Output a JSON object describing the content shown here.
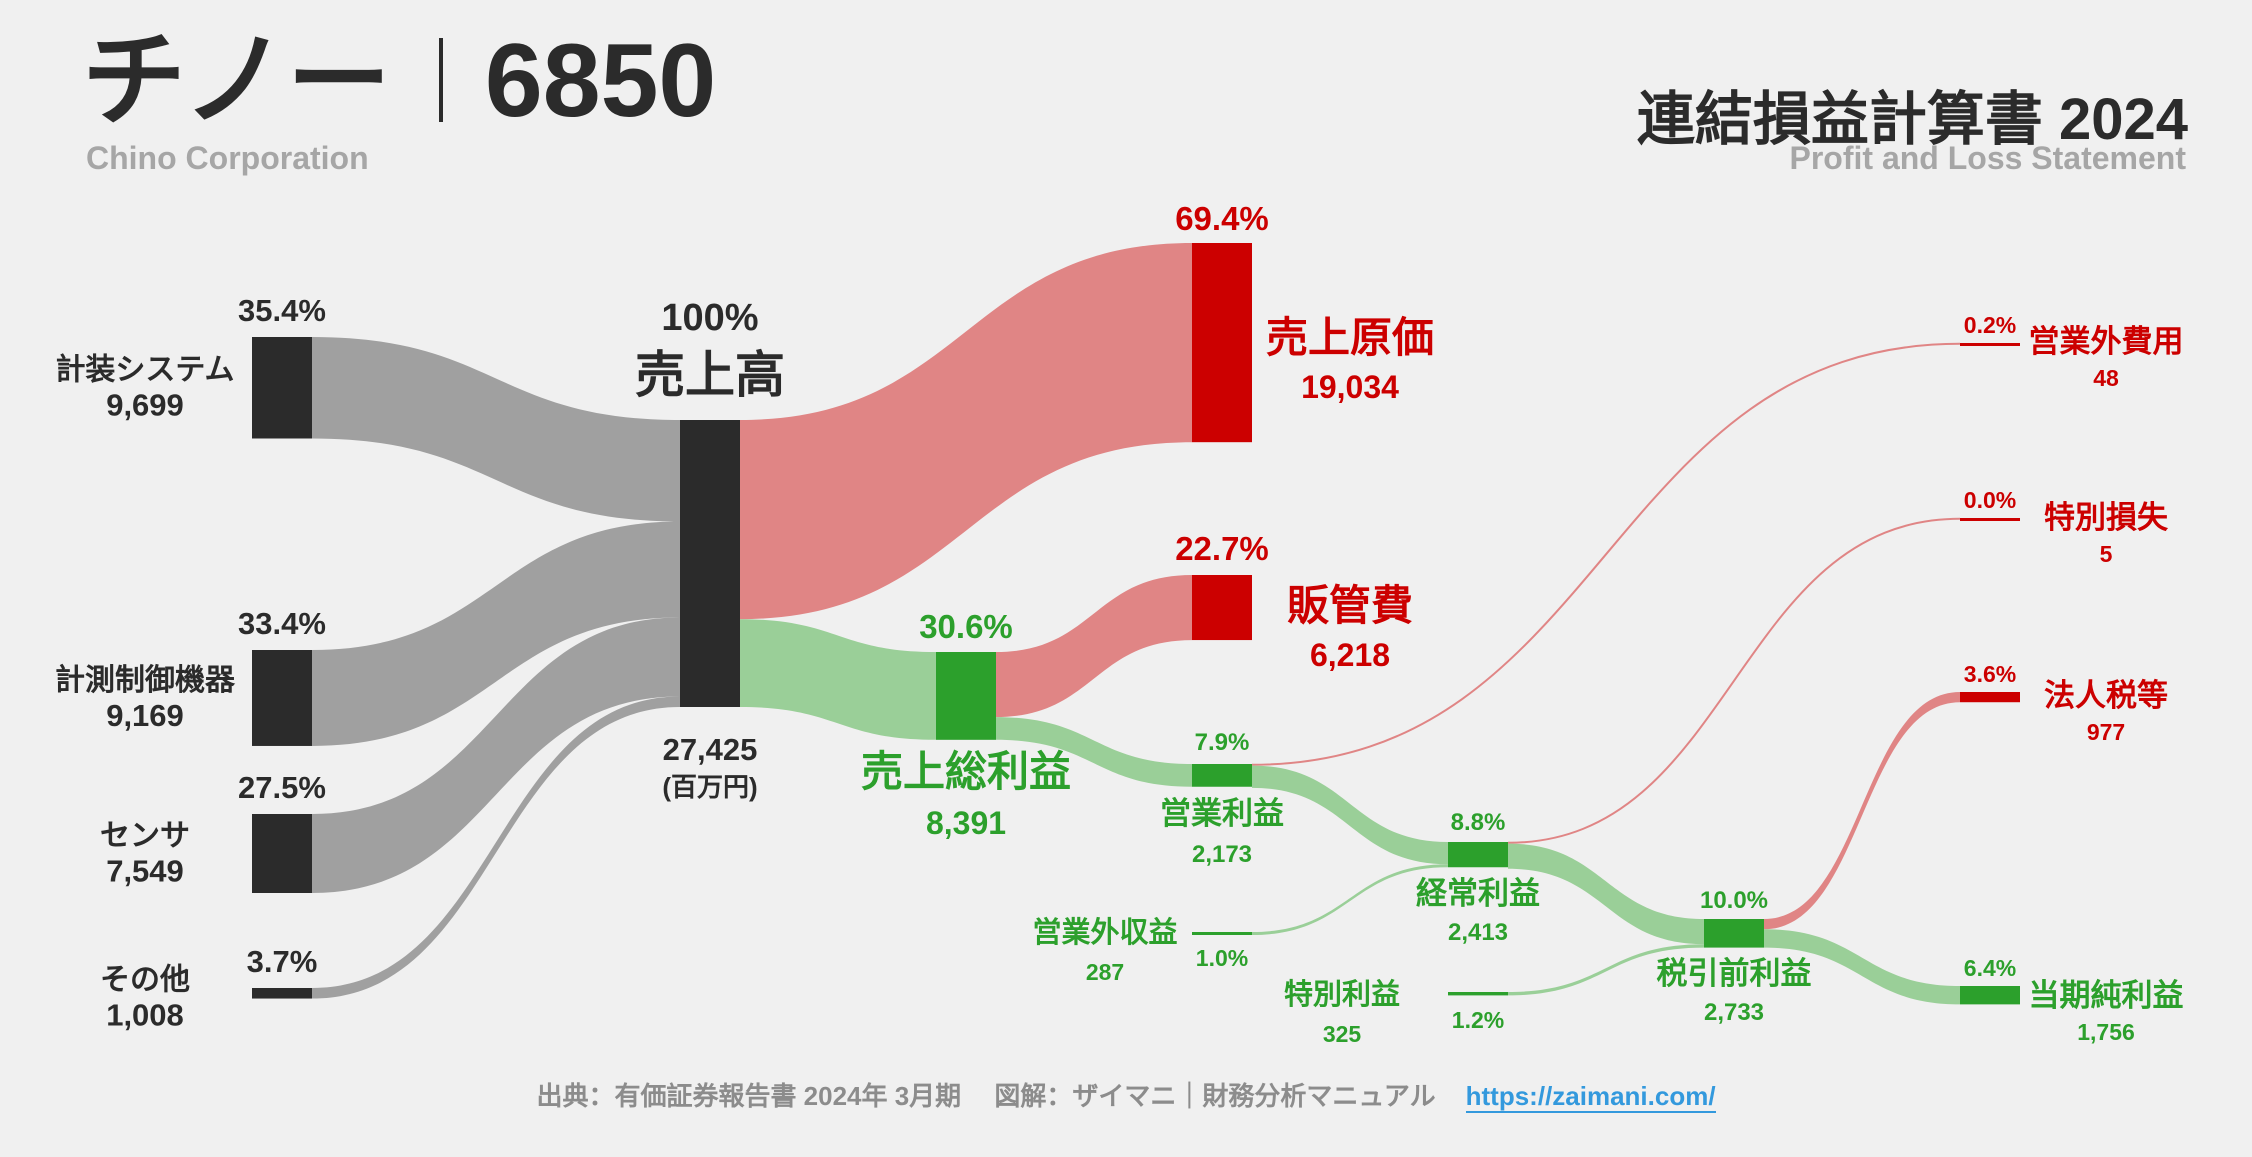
{
  "header": {
    "company_name": "チノー",
    "ticker": "6850",
    "company_name_en": "Chino Corporation",
    "statement_title": "連結損益計算書 2024",
    "statement_subtitle": "Profit and Loss Statement"
  },
  "footer": {
    "source": "出典：有価証券報告書 2024年 3月期　 図解：ザイマニ｜財務分析マニュアル",
    "url": "https://zaimani.com/"
  },
  "colors": {
    "background": "#f0f0f0",
    "revenue_node": "#2b2b2b",
    "revenue_flow": "#a0a0a0",
    "cost_node": "#cc0000",
    "cost_flow": "#e08585",
    "cost_text": "#cc0000",
    "profit_node": "#2ca02c",
    "profit_flow": "#9acf98",
    "profit_text": "#2ca02c",
    "dark_text": "#2b2b2b"
  },
  "chart_data": {
    "type": "sankey",
    "title": "連結損益計算書 2024",
    "unit": "百万円",
    "nodes": [
      {
        "id": "seg1",
        "label": "計装システム",
        "value": 9699,
        "value_text": "9,699",
        "pct": "35.4%",
        "kind": "revenue"
      },
      {
        "id": "seg2",
        "label": "計測制御機器",
        "value": 9169,
        "value_text": "9,169",
        "pct": "33.4%",
        "kind": "revenue"
      },
      {
        "id": "seg3",
        "label": "センサ",
        "value": 7549,
        "value_text": "7,549",
        "pct": "27.5%",
        "kind": "revenue"
      },
      {
        "id": "seg4",
        "label": "その他",
        "value": 1008,
        "value_text": "1,008",
        "pct": "3.7%",
        "kind": "revenue"
      },
      {
        "id": "rev",
        "label": "売上高",
        "value": 27425,
        "value_text": "27,425",
        "pct": "100%",
        "unit_label": "(百万円)",
        "kind": "revenue"
      },
      {
        "id": "cogs",
        "label": "売上原価",
        "value": 19034,
        "value_text": "19,034",
        "pct": "69.4%",
        "kind": "cost"
      },
      {
        "id": "gross",
        "label": "売上総利益",
        "value": 8391,
        "value_text": "8,391",
        "pct": "30.6%",
        "kind": "profit"
      },
      {
        "id": "sga",
        "label": "販管費",
        "value": 6218,
        "value_text": "6,218",
        "pct": "22.7%",
        "kind": "cost"
      },
      {
        "id": "op",
        "label": "営業利益",
        "value": 2173,
        "value_text": "2,173",
        "pct": "7.9%",
        "kind": "profit"
      },
      {
        "id": "nonopinc",
        "label": "営業外収益",
        "value": 287,
        "value_text": "287",
        "pct": "1.0%",
        "kind": "profit"
      },
      {
        "id": "nonopexp",
        "label": "営業外費用",
        "value": 48,
        "value_text": "48",
        "pct": "0.2%",
        "kind": "cost"
      },
      {
        "id": "ord",
        "label": "経常利益",
        "value": 2413,
        "value_text": "2,413",
        "pct": "8.8%",
        "kind": "profit"
      },
      {
        "id": "extinc",
        "label": "特別利益",
        "value": 325,
        "value_text": "325",
        "pct": "1.2%",
        "kind": "profit"
      },
      {
        "id": "extloss",
        "label": "特別損失",
        "value": 5,
        "value_text": "5",
        "pct": "0.0%",
        "kind": "cost"
      },
      {
        "id": "pretax",
        "label": "税引前利益",
        "value": 2733,
        "value_text": "2,733",
        "pct": "10.0%",
        "kind": "profit"
      },
      {
        "id": "tax",
        "label": "法人税等",
        "value": 977,
        "value_text": "977",
        "pct": "3.6%",
        "kind": "cost"
      },
      {
        "id": "net",
        "label": "当期純利益",
        "value": 1756,
        "value_text": "1,756",
        "pct": "6.4%",
        "kind": "profit"
      }
    ],
    "flows": [
      {
        "from": "seg1",
        "to": "rev",
        "value": 9699
      },
      {
        "from": "seg2",
        "to": "rev",
        "value": 9169
      },
      {
        "from": "seg3",
        "to": "rev",
        "value": 7549
      },
      {
        "from": "seg4",
        "to": "rev",
        "value": 1008
      },
      {
        "from": "rev",
        "to": "cogs",
        "value": 19034
      },
      {
        "from": "rev",
        "to": "gross",
        "value": 8391
      },
      {
        "from": "gross",
        "to": "sga",
        "value": 6218
      },
      {
        "from": "gross",
        "to": "op",
        "value": 2173
      },
      {
        "from": "op",
        "to": "nonopexp",
        "value": 48
      },
      {
        "from": "op",
        "to": "ord",
        "value": 2125
      },
      {
        "from": "nonopinc",
        "to": "ord",
        "value": 287
      },
      {
        "from": "ord",
        "to": "extloss",
        "value": 5
      },
      {
        "from": "ord",
        "to": "pretax",
        "value": 2408
      },
      {
        "from": "extinc",
        "to": "pretax",
        "value": 325
      },
      {
        "from": "pretax",
        "to": "tax",
        "value": 977
      },
      {
        "from": "pretax",
        "to": "net",
        "value": 1756
      }
    ]
  }
}
